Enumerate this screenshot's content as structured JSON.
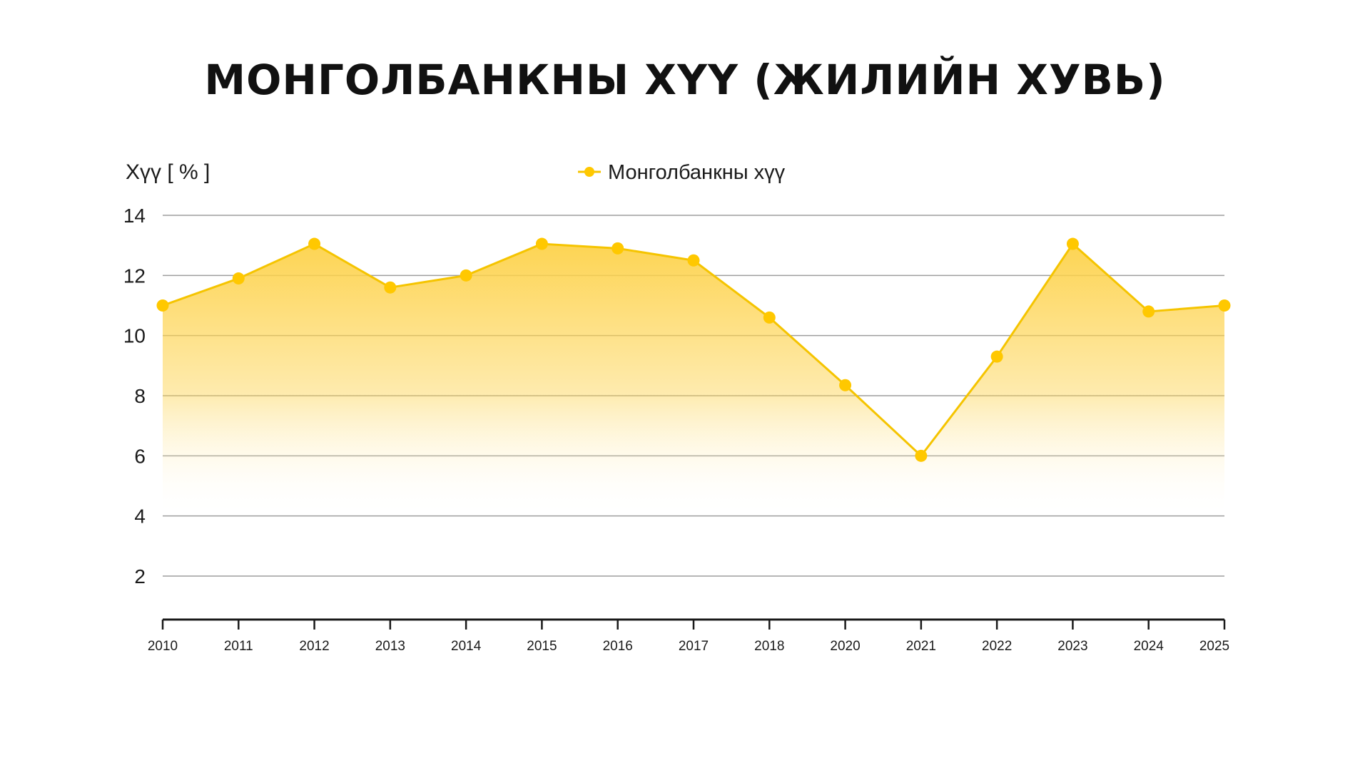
{
  "chart_data": {
    "type": "area",
    "title": "МОНГОЛБАНКНЫ ХҮҮ (ЖИЛИЙН ХУВЬ)",
    "ylabel": "Хүү [ % ]",
    "xlabel": "",
    "categories": [
      "2010",
      "2011",
      "2012",
      "2013",
      "2014",
      "2015",
      "2016",
      "2017",
      "2018",
      "2020",
      "2021",
      "2022",
      "2023",
      "2024",
      "2025"
    ],
    "series": [
      {
        "name": "Монголбанкны хүү",
        "values": [
          11.0,
          11.9,
          13.05,
          11.6,
          12.0,
          13.05,
          12.9,
          12.5,
          10.6,
          8.35,
          6.0,
          9.3,
          13.05,
          10.8,
          11.0
        ]
      }
    ],
    "ylim": [
      0,
      14
    ],
    "yticks": [
      2,
      4,
      6,
      8,
      10,
      12,
      14
    ],
    "grid": true,
    "legend": "top-center",
    "colors": {
      "line": "#F5C400",
      "marker": "#FFC800",
      "fill_top": "#FDD24A",
      "fill_bottom": "#FFFFFF",
      "grid": "#9E9E9E",
      "axis": "#1A1A1A"
    }
  }
}
